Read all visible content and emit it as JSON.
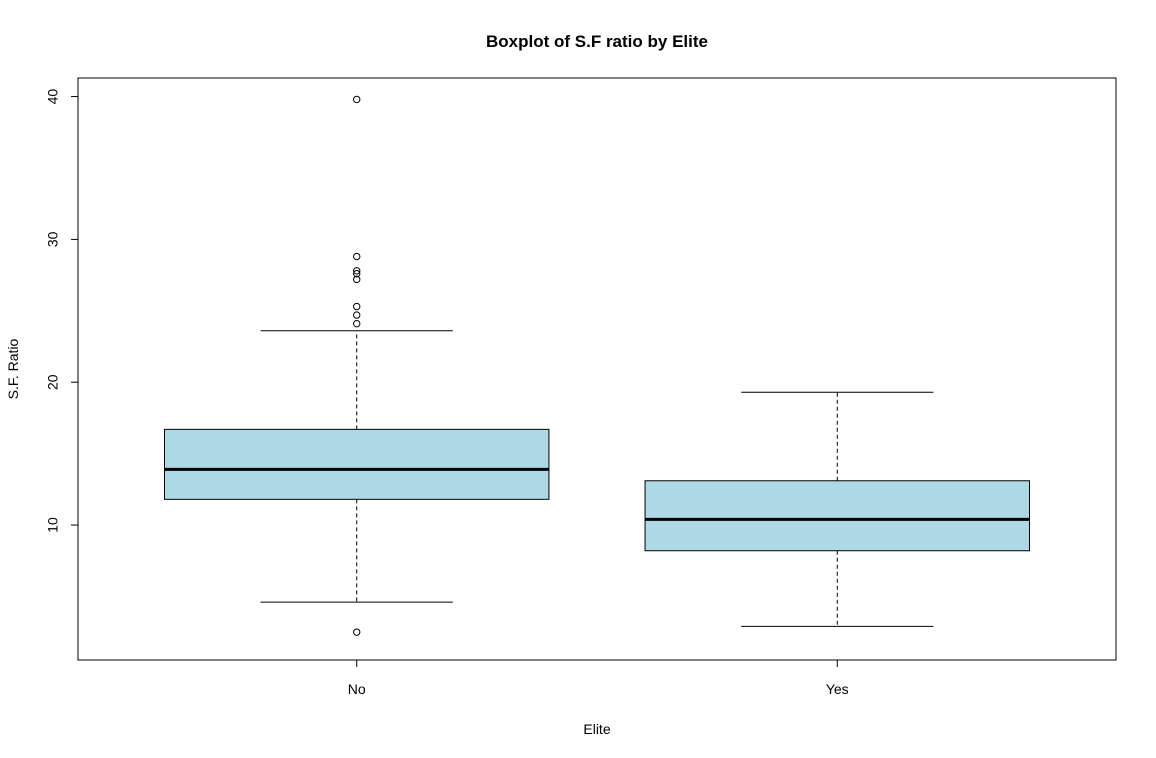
{
  "chart_data": {
    "type": "boxplot",
    "title": "Boxplot of S.F ratio by Elite",
    "xlabel": "Elite",
    "ylabel": "S.F. Ratio",
    "ylim": [
      0.55,
      41.3
    ],
    "yticks": [
      "10",
      "20",
      "30",
      "40"
    ],
    "categories": [
      "No",
      "Yes"
    ],
    "box_color": "#add8e6",
    "grid": false,
    "legend": "none",
    "series": [
      {
        "category": "No",
        "whisker_low": 4.6,
        "q1": 11.8,
        "median": 13.9,
        "q3": 16.7,
        "whisker_high": 23.6,
        "outliers": [
          2.5,
          24.1,
          24.7,
          25.3,
          27.2,
          27.6,
          27.8,
          28.8,
          39.8
        ]
      },
      {
        "category": "Yes",
        "whisker_low": 2.9,
        "q1": 8.2,
        "median": 10.4,
        "q3": 13.1,
        "whisker_high": 19.3,
        "outliers": []
      }
    ]
  }
}
